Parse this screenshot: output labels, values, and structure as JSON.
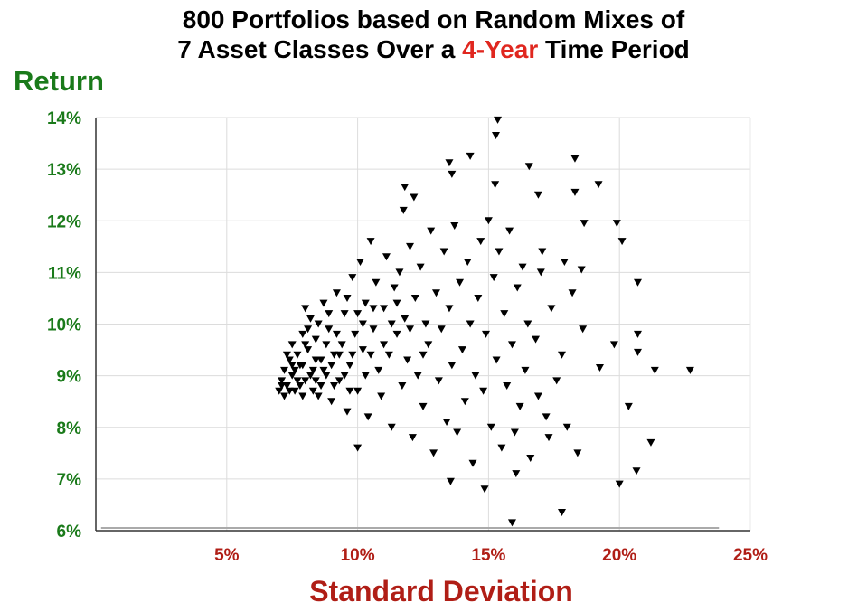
{
  "title_line1": "800 Portfolios based on Random Mixes of",
  "title_line2_pre": "7 Asset Classes Over a ",
  "title_line2_hl": "4-Year",
  "title_line2_post": " Time Period",
  "chart_data": {
    "type": "scatter",
    "title": "800 Portfolios based on Random Mixes of 7 Asset Classes Over a 4-Year Time Period",
    "xlabel": "Standard Deviation",
    "ylabel": "Return",
    "xlim": [
      0,
      25
    ],
    "ylim": [
      6,
      14
    ],
    "xticks": [
      {
        "v": 5,
        "label": "5%"
      },
      {
        "v": 10,
        "label": "10%"
      },
      {
        "v": 15,
        "label": "15%"
      },
      {
        "v": 20,
        "label": "20%"
      },
      {
        "v": 25,
        "label": "25%"
      }
    ],
    "yticks": [
      {
        "v": 6,
        "label": "6%"
      },
      {
        "v": 7,
        "label": "7%"
      },
      {
        "v": 8,
        "label": "8%"
      },
      {
        "v": 9,
        "label": "9%"
      },
      {
        "v": 10,
        "label": "10%"
      },
      {
        "v": 11,
        "label": "11%"
      },
      {
        "v": 12,
        "label": "12%"
      },
      {
        "v": 13,
        "label": "13%"
      },
      {
        "v": 14,
        "label": "14%"
      }
    ],
    "grid": true,
    "marker": "triangle-down",
    "marker_color": "#000000",
    "colors": {
      "title_highlight": "#e0271f",
      "y_axis": "#1a7a1a",
      "x_axis": "#b01e16"
    },
    "points": [
      [
        15.35,
        13.95
      ],
      [
        15.28,
        13.65
      ],
      [
        13.5,
        13.12
      ],
      [
        13.6,
        12.9
      ],
      [
        14.3,
        13.25
      ],
      [
        16.55,
        13.05
      ],
      [
        18.3,
        13.2
      ],
      [
        19.2,
        12.7
      ],
      [
        18.3,
        12.55
      ],
      [
        16.9,
        12.5
      ],
      [
        15.25,
        12.7
      ],
      [
        11.8,
        12.65
      ],
      [
        12.15,
        12.45
      ],
      [
        11.75,
        12.2
      ],
      [
        18.65,
        11.95
      ],
      [
        19.9,
        11.95
      ],
      [
        20.1,
        11.6
      ],
      [
        20.7,
        10.8
      ],
      [
        21.35,
        9.1
      ],
      [
        22.7,
        9.1
      ],
      [
        20.7,
        9.8
      ],
      [
        20.7,
        9.45
      ],
      [
        19.25,
        9.15
      ],
      [
        20.35,
        8.4
      ],
      [
        19.8,
        9.6
      ],
      [
        21.2,
        7.7
      ],
      [
        20.65,
        7.15
      ],
      [
        20.0,
        6.9
      ],
      [
        17.8,
        6.35
      ],
      [
        15.9,
        6.15
      ],
      [
        14.85,
        6.8
      ],
      [
        16.05,
        7.1
      ],
      [
        13.55,
        6.95
      ],
      [
        10.0,
        7.6
      ],
      [
        18.55,
        11.05
      ],
      [
        17.05,
        11.4
      ],
      [
        17.9,
        11.2
      ],
      [
        7.0,
        8.7
      ],
      [
        7.1,
        8.9
      ],
      [
        7.2,
        9.1
      ],
      [
        7.3,
        8.8
      ],
      [
        7.4,
        9.3
      ],
      [
        7.5,
        9.0
      ],
      [
        7.5,
        9.6
      ],
      [
        7.6,
        8.7
      ],
      [
        7.7,
        9.4
      ],
      [
        7.8,
        9.2
      ],
      [
        7.9,
        9.8
      ],
      [
        8.0,
        8.9
      ],
      [
        8.1,
        9.5
      ],
      [
        8.2,
        10.1
      ],
      [
        8.3,
        9.1
      ],
      [
        8.4,
        9.7
      ],
      [
        8.5,
        8.6
      ],
      [
        8.6,
        9.3
      ],
      [
        8.7,
        10.4
      ],
      [
        8.8,
        9.0
      ],
      [
        8.9,
        9.9
      ],
      [
        9.0,
        8.5
      ],
      [
        9.1,
        9.4
      ],
      [
        9.2,
        10.6
      ],
      [
        9.3,
        8.9
      ],
      [
        9.4,
        9.6
      ],
      [
        9.5,
        10.2
      ],
      [
        9.6,
        8.3
      ],
      [
        9.7,
        9.2
      ],
      [
        9.8,
        10.9
      ],
      [
        9.9,
        9.8
      ],
      [
        10.0,
        8.7
      ],
      [
        10.1,
        11.2
      ],
      [
        10.2,
        9.5
      ],
      [
        10.3,
        10.4
      ],
      [
        10.4,
        8.2
      ],
      [
        10.5,
        11.6
      ],
      [
        10.6,
        9.9
      ],
      [
        10.7,
        10.8
      ],
      [
        10.8,
        9.1
      ],
      [
        10.9,
        8.6
      ],
      [
        11.0,
        10.3
      ],
      [
        11.1,
        11.3
      ],
      [
        11.2,
        9.4
      ],
      [
        11.3,
        8.0
      ],
      [
        11.4,
        10.7
      ],
      [
        11.5,
        9.8
      ],
      [
        11.6,
        11.0
      ],
      [
        11.7,
        8.8
      ],
      [
        11.8,
        10.1
      ],
      [
        11.9,
        9.3
      ],
      [
        12.0,
        11.5
      ],
      [
        12.1,
        7.8
      ],
      [
        12.2,
        10.5
      ],
      [
        12.3,
        9.0
      ],
      [
        12.4,
        11.1
      ],
      [
        12.5,
        8.4
      ],
      [
        12.6,
        10.0
      ],
      [
        12.7,
        9.6
      ],
      [
        12.8,
        11.8
      ],
      [
        12.9,
        7.5
      ],
      [
        13.0,
        10.6
      ],
      [
        13.1,
        8.9
      ],
      [
        13.2,
        9.9
      ],
      [
        13.3,
        11.4
      ],
      [
        13.4,
        8.1
      ],
      [
        13.5,
        10.3
      ],
      [
        13.6,
        9.2
      ],
      [
        13.7,
        11.9
      ],
      [
        13.8,
        7.9
      ],
      [
        13.9,
        10.8
      ],
      [
        14.0,
        9.5
      ],
      [
        14.1,
        8.5
      ],
      [
        14.2,
        11.2
      ],
      [
        14.3,
        10.0
      ],
      [
        14.4,
        7.3
      ],
      [
        14.5,
        9.0
      ],
      [
        14.6,
        10.5
      ],
      [
        14.7,
        11.6
      ],
      [
        14.8,
        8.7
      ],
      [
        14.9,
        9.8
      ],
      [
        15.0,
        12.0
      ],
      [
        15.1,
        8.0
      ],
      [
        15.2,
        10.9
      ],
      [
        15.3,
        9.3
      ],
      [
        15.4,
        11.4
      ],
      [
        15.5,
        7.6
      ],
      [
        15.6,
        10.2
      ],
      [
        15.7,
        8.8
      ],
      [
        15.8,
        11.8
      ],
      [
        15.9,
        9.6
      ],
      [
        16.0,
        7.9
      ],
      [
        16.1,
        10.7
      ],
      [
        16.2,
        8.4
      ],
      [
        16.3,
        11.1
      ],
      [
        16.4,
        9.1
      ],
      [
        16.5,
        10.0
      ],
      [
        16.6,
        7.4
      ],
      [
        16.8,
        9.7
      ],
      [
        17.0,
        11.0
      ],
      [
        17.2,
        8.2
      ],
      [
        17.4,
        10.3
      ],
      [
        17.6,
        8.9
      ],
      [
        17.8,
        9.4
      ],
      [
        18.0,
        8.0
      ],
      [
        18.2,
        10.6
      ],
      [
        18.4,
        7.5
      ],
      [
        18.6,
        9.9
      ],
      [
        16.9,
        8.6
      ],
      [
        17.3,
        7.8
      ],
      [
        7.2,
        8.6
      ],
      [
        7.3,
        9.4
      ],
      [
        7.6,
        9.1
      ],
      [
        7.8,
        8.8
      ],
      [
        8.0,
        9.6
      ],
      [
        8.2,
        9.0
      ],
      [
        8.4,
        9.3
      ],
      [
        8.6,
        8.8
      ],
      [
        8.8,
        9.6
      ],
      [
        7.4,
        8.7
      ],
      [
        7.9,
        9.2
      ],
      [
        8.3,
        8.7
      ],
      [
        8.1,
        9.9
      ],
      [
        7.7,
        8.9
      ],
      [
        9.0,
        9.2
      ],
      [
        9.2,
        9.8
      ],
      [
        8.5,
        10.0
      ],
      [
        8.9,
        10.2
      ],
      [
        9.5,
        9.0
      ],
      [
        9.8,
        9.4
      ],
      [
        10.2,
        10.0
      ],
      [
        10.5,
        9.4
      ],
      [
        11.0,
        9.6
      ],
      [
        11.3,
        10.0
      ],
      [
        9.6,
        10.5
      ],
      [
        10.0,
        10.2
      ],
      [
        10.6,
        10.3
      ],
      [
        11.5,
        10.4
      ],
      [
        12.0,
        9.9
      ],
      [
        12.5,
        9.4
      ],
      [
        7.1,
        8.8
      ],
      [
        7.5,
        9.2
      ],
      [
        7.9,
        8.6
      ],
      [
        8.7,
        9.1
      ],
      [
        9.3,
        9.4
      ],
      [
        8.0,
        10.3
      ],
      [
        8.4,
        8.9
      ],
      [
        9.1,
        8.8
      ],
      [
        9.7,
        8.7
      ],
      [
        10.3,
        9.0
      ]
    ]
  }
}
